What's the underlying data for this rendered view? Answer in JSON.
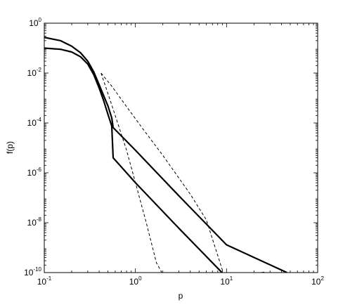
{
  "chart_data": {
    "type": "line",
    "xlabel": "p",
    "ylabel": "f(p)",
    "xscale": "log",
    "yscale": "log",
    "xlim": [
      0.1,
      100
    ],
    "ylim": [
      1e-10,
      1
    ],
    "grid": false,
    "x_ticks": [
      {
        "value": 0.1,
        "base": "10",
        "exp": "-1"
      },
      {
        "value": 1,
        "base": "10",
        "exp": "0"
      },
      {
        "value": 10,
        "base": "10",
        "exp": "1"
      },
      {
        "value": 100,
        "base": "10",
        "exp": "2"
      }
    ],
    "y_ticks": [
      {
        "value": 1e-10,
        "base": "10",
        "exp": "-10"
      },
      {
        "value": 1e-08,
        "base": "10",
        "exp": "-8"
      },
      {
        "value": 1e-06,
        "base": "10",
        "exp": "-6"
      },
      {
        "value": 0.0001,
        "base": "10",
        "exp": "-4"
      },
      {
        "value": 0.01,
        "base": "10",
        "exp": "-2"
      },
      {
        "value": 1,
        "base": "10",
        "exp": "0"
      }
    ],
    "series": [
      {
        "style": "solid",
        "x": [
          0.1,
          0.15,
          0.2,
          0.25,
          0.3,
          0.35,
          0.4,
          0.45,
          0.5,
          0.55,
          0.57,
          1,
          3,
          10,
          46
        ],
        "y": [
          0.27,
          0.2,
          0.12,
          0.065,
          0.03,
          0.011,
          0.0034,
          0.0012,
          0.00048,
          0.00016,
          6.5e-05,
          8e-06,
          1.2e-07,
          1.3e-09,
          1e-10
        ]
      },
      {
        "style": "solid",
        "x": [
          0.1,
          0.15,
          0.2,
          0.25,
          0.3,
          0.35,
          0.4,
          0.45,
          0.5,
          0.55,
          0.57,
          1,
          3,
          10,
          26
        ],
        "y": [
          0.1,
          0.09,
          0.07,
          0.045,
          0.023,
          0.0085,
          0.0025,
          0.00075,
          0.00022,
          7.5e-05,
          4e-06,
          4e-07,
          6e-09,
          6.5e-11,
          1e-10
        ]
      },
      {
        "style": "dashed",
        "x": [
          0.42,
          0.55,
          0.8,
          1.2,
          2,
          4,
          6,
          9.2
        ],
        "y": [
          0.01,
          0.003,
          0.00045,
          6e-05,
          5e-06,
          1.4e-07,
          1.3e-08,
          1e-10
        ]
      },
      {
        "style": "dashed",
        "x": [
          0.42,
          0.5,
          0.6,
          0.8,
          1.0,
          1.3,
          1.7,
          1.95
        ],
        "y": [
          0.01,
          0.0015,
          0.0002,
          8e-06,
          4e-07,
          1.2e-08,
          2.5e-10,
          1e-10
        ]
      }
    ]
  }
}
